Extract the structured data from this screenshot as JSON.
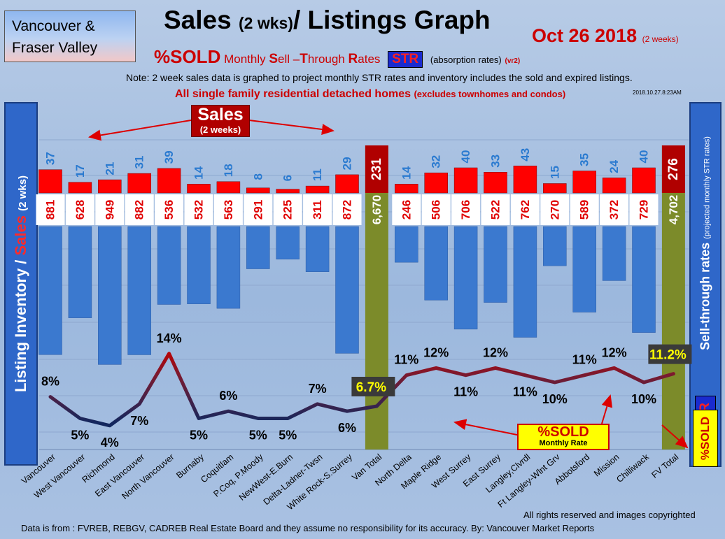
{
  "header": {
    "region_line1": "Vancouver &",
    "region_line2": "Fraser Valley",
    "title_main": "Sales",
    "title_small": "(2 wks)",
    "title_rest": "/ Listings Graph",
    "date": "Oct 26 2018",
    "date_note": "(2 weeks)",
    "subtitle_pct": "%SOLD",
    "subtitle_m": "Monthly",
    "subtitle_s": "S",
    "subtitle_ell": "ell",
    "subtitle_dash": "–",
    "subtitle_t": "T",
    "subtitle_hrough": "hrough",
    "subtitle_r": "R",
    "subtitle_ates": "ates",
    "str": "STR",
    "absorption": "(absorption rates)",
    "version": "(vr2)",
    "note": "Note: 2 week sales data is graphed to project monthly STR rates and inventory includes the sold and expired listings.",
    "detached": "All single family residential detached homes",
    "detached_small": "(excludes townhomes and condos)",
    "stamp": "2018.10.27.8:23AM"
  },
  "panels": {
    "left_part1": "Listing Inventory /",
    "left_part2": "Sales",
    "left_part3": "(2 wks)",
    "right_main": "Sell-through rates",
    "right_small": "(projected monthly STR rates)",
    "right_str": "STR",
    "right_sold": "%SOLD"
  },
  "callouts": {
    "sales_l1": "Sales",
    "sales_l2": "(2 weeks)",
    "sold_l1": "%SOLD",
    "sold_l2": "Monthly Rate"
  },
  "footer": {
    "copyright": "All rights reserved and  images copyrighted",
    "source": "Data is from : FVREB, REBGV, CADREB Real Estate Board and they assume no responsibility for its accuracy. By: Vancouver Market Reports"
  },
  "colors": {
    "sales": "#ff0000",
    "inventory": "#3b79cf",
    "total": "#7c8b2a",
    "line_low": "#13275e",
    "line_high": "#b00000"
  },
  "chart_data": {
    "type": "bar",
    "categories": [
      "Vancouver",
      "West Vancouver",
      "Richmond",
      "East Vancouver",
      "North Vancouver",
      "Burnaby",
      "Coquitlam",
      "P.Coq, P.Moody",
      "NewWest-E.Burn",
      "Delta-Ladner-Twsn",
      "White Rock-S.Surrey",
      "Van Total",
      "North Delta",
      "Maple Ridge",
      "West Surrey",
      "East Surrey",
      "Langley,Clvrdl",
      "Ft Langley-Wlnt Grv",
      "Abbotsford",
      "Mission",
      "Chilliwack",
      "FV Total"
    ],
    "series": [
      {
        "name": "Sales",
        "values": [
          37,
          17,
          21,
          31,
          39,
          14,
          18,
          8,
          6,
          11,
          29,
          231,
          14,
          32,
          40,
          33,
          43,
          15,
          35,
          24,
          40,
          276
        ]
      },
      {
        "name": "Listing Inventory",
        "values": [
          881,
          628,
          949,
          882,
          536,
          532,
          563,
          291,
          225,
          311,
          872,
          6670,
          246,
          506,
          706,
          522,
          762,
          270,
          589,
          372,
          729,
          4702
        ]
      },
      {
        "name": "%SOLD",
        "values": [
          8,
          5,
          4,
          7,
          14,
          5,
          6,
          5,
          5,
          7,
          6,
          6.7,
          11,
          12,
          11,
          12,
          11,
          10,
          11,
          12,
          10,
          11.2
        ]
      }
    ],
    "sales_labels": [
      "37",
      "17",
      "21",
      "31",
      "39",
      "14",
      "18",
      "8",
      "6",
      "11",
      "29",
      "231",
      "14",
      "32",
      "40",
      "33",
      "43",
      "15",
      "35",
      "24",
      "40",
      "276"
    ],
    "inventory_labels": [
      "881",
      "628",
      "949",
      "882",
      "536",
      "532",
      "563",
      "291",
      "225",
      "311",
      "872",
      "6,670",
      "246",
      "506",
      "706",
      "522",
      "762",
      "270",
      "589",
      "372",
      "729",
      "4,702"
    ],
    "pct_labels": [
      "8%",
      "5%",
      "4%",
      "7%",
      "14%",
      "5%",
      "6%",
      "5%",
      "5%",
      "7%",
      "6%",
      "6.7%",
      "11%",
      "12%",
      "11%",
      "12%",
      "11%",
      "10%",
      "11%",
      "12%",
      "10%",
      "11.2%"
    ],
    "pct_placement": [
      "above",
      "below",
      "below",
      "below",
      "above",
      "below",
      "above",
      "below",
      "below",
      "above",
      "below",
      "box",
      "above",
      "above",
      "below",
      "above",
      "below",
      "below",
      "above",
      "above",
      "below",
      "box"
    ],
    "total_indices": [
      11,
      21
    ]
  }
}
